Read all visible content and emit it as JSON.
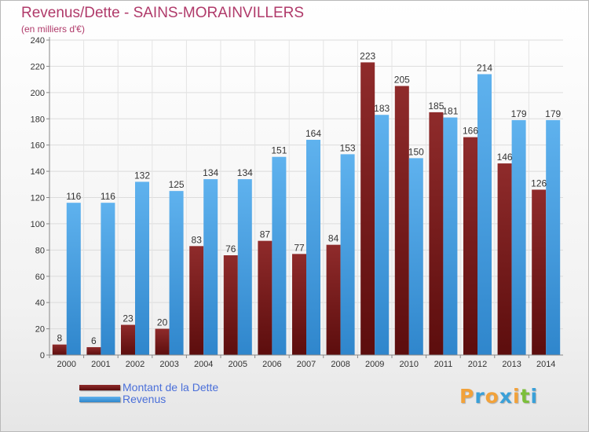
{
  "chart_data": {
    "type": "bar",
    "title": "Revenus/Dette - SAINS-MORAINVILLERS",
    "subtitle": "(en milliers d'€)",
    "categories": [
      "2000",
      "2001",
      "2002",
      "2003",
      "2004",
      "2005",
      "2006",
      "2007",
      "2008",
      "2009",
      "2010",
      "2011",
      "2012",
      "2013",
      "2014"
    ],
    "series": [
      {
        "name": "Montant de la Dette",
        "color": "#7b1c1c",
        "values": [
          8,
          6,
          23,
          20,
          83,
          76,
          87,
          77,
          84,
          223,
          205,
          185,
          166,
          146,
          126
        ]
      },
      {
        "name": "Revenus",
        "color": "#4aa3e6",
        "values": [
          116,
          116,
          132,
          125,
          134,
          134,
          151,
          164,
          153,
          183,
          150,
          181,
          214,
          179,
          179
        ]
      }
    ],
    "ylim": [
      0,
      240
    ],
    "yticks": [
      0,
      20,
      40,
      60,
      80,
      100,
      120,
      140,
      160,
      180,
      200,
      220,
      240
    ],
    "grid": true,
    "legend_position": "bottom-left",
    "data_labels": true
  },
  "branding": {
    "logo_letters": [
      "P",
      "r",
      "o",
      "x",
      "i",
      "t",
      "i"
    ],
    "logo_colors": [
      "#f2a23a",
      "#3aa0d8",
      "#f2a23a",
      "#3aa0d8",
      "#f2a23a",
      "#7cbf3a",
      "#3aa0d8"
    ]
  }
}
